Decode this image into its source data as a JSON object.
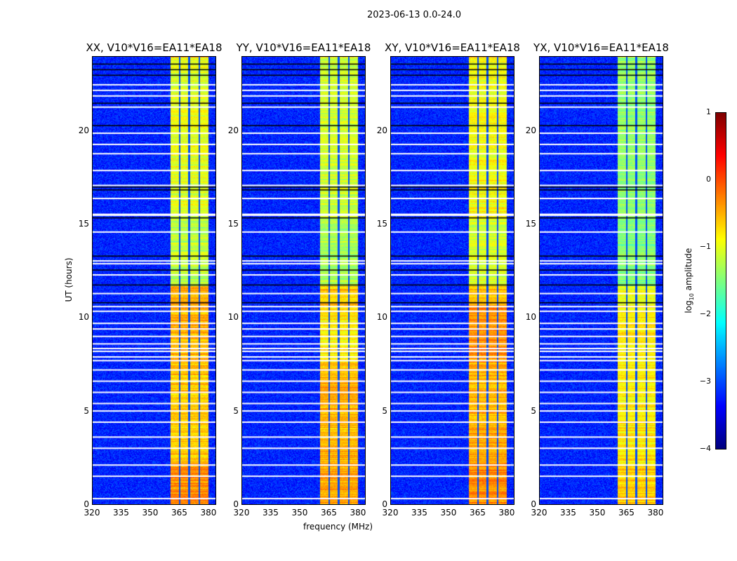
{
  "chart_data": {
    "type": "heatmap",
    "title": "2023-06-13 0.0-24.0",
    "xlabel": "frequency (MHz)",
    "ylabel": "UT (hours)",
    "xlim": [
      320,
      384
    ],
    "ylim": [
      0,
      24
    ],
    "xticks": [
      320,
      335,
      350,
      365,
      380
    ],
    "yticks": [
      0,
      5,
      10,
      15,
      20
    ],
    "colorbar": {
      "label": "log10 amplitude",
      "label_main": "log",
      "label_sub": "10",
      "label_rest": " amplitude",
      "range": [
        -4,
        1
      ],
      "ticks": [
        1,
        0,
        -1,
        -2,
        -3,
        -4
      ],
      "tick_labels": [
        "1",
        "0",
        "−1",
        "−2",
        "−3",
        "−4"
      ],
      "colormap": "jet"
    },
    "background_level": -3.2,
    "band": {
      "start_mhz": 360.5,
      "end_mhz": 380,
      "gaps_mhz": [
        365.2,
        370.1,
        375.4
      ]
    },
    "flagged_white_ut": [
      0.3,
      1.5,
      2.1,
      3.0,
      3.6,
      4.4,
      5.0,
      5.4,
      6.0,
      6.6,
      7.2,
      7.7,
      7.9,
      8.2,
      8.35,
      8.6,
      9.0,
      9.4,
      9.7,
      10.35,
      10.6,
      11.3,
      12.3,
      12.9,
      13.05,
      14.6,
      15.5,
      15.55,
      16.4,
      17.1,
      17.9,
      18.8,
      19.3,
      19.9,
      21.3,
      21.9,
      22.2,
      22.5
    ],
    "flagged_black_ut": [
      10.8,
      11.75,
      12.55,
      13.3,
      15.35,
      16.85,
      17.0,
      20.3,
      21.5,
      23.0,
      23.3,
      23.6
    ],
    "panels": [
      {
        "title": "XX, V10*V16=EA11*EA18",
        "band_segments": [
          {
            "ut": [
              0,
              2.2
            ],
            "level": -0.3
          },
          {
            "ut": [
              2.2,
              7.6
            ],
            "level": -0.6
          },
          {
            "ut": [
              7.6,
              10.7
            ],
            "level": -0.5
          },
          {
            "ut": [
              10.7,
              11.7
            ],
            "level": -0.5
          },
          {
            "ut": [
              11.7,
              15.4
            ],
            "level": -1.2
          },
          {
            "ut": [
              15.4,
              24
            ],
            "level": -1.0
          }
        ]
      },
      {
        "title": "YY, V10*V16=EA11*EA18",
        "band_segments": [
          {
            "ut": [
              0,
              2.2
            ],
            "level": -0.4
          },
          {
            "ut": [
              2.2,
              7.6
            ],
            "level": -0.5
          },
          {
            "ut": [
              7.6,
              10.7
            ],
            "level": -0.8
          },
          {
            "ut": [
              10.7,
              11.7
            ],
            "level": -0.6
          },
          {
            "ut": [
              11.7,
              15.4
            ],
            "level": -1.3
          },
          {
            "ut": [
              15.4,
              24
            ],
            "level": -1.1
          }
        ]
      },
      {
        "title": "XY, V10*V16=EA11*EA18",
        "band_segments": [
          {
            "ut": [
              0,
              2.2
            ],
            "level": -0.3
          },
          {
            "ut": [
              2.2,
              7.6
            ],
            "level": -0.5
          },
          {
            "ut": [
              7.6,
              10.7
            ],
            "level": -0.3
          },
          {
            "ut": [
              10.7,
              11.7
            ],
            "level": -0.6
          },
          {
            "ut": [
              11.7,
              15.4
            ],
            "level": -1.1
          },
          {
            "ut": [
              15.4,
              24
            ],
            "level": -0.9
          }
        ]
      },
      {
        "title": "YX, V10*V16=EA11*EA18",
        "band_segments": [
          {
            "ut": [
              0,
              2.2
            ],
            "level": -0.6
          },
          {
            "ut": [
              2.2,
              7.6
            ],
            "level": -0.8
          },
          {
            "ut": [
              7.6,
              10.7
            ],
            "level": -0.8
          },
          {
            "ut": [
              10.7,
              11.7
            ],
            "level": -1.0
          },
          {
            "ut": [
              11.7,
              15.4
            ],
            "level": -1.5
          },
          {
            "ut": [
              15.4,
              24
            ],
            "level": -1.4
          }
        ]
      }
    ]
  }
}
